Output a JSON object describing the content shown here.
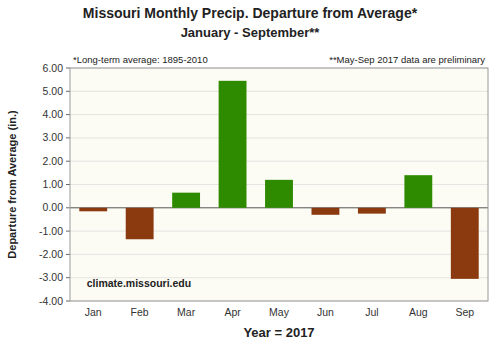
{
  "chart_data": {
    "type": "bar",
    "title": "Missouri Monthly Precip. Departure from Average*",
    "subtitle": "January - September**",
    "x_label": "Year = 2017",
    "y_label": "Departure from Average (in.)",
    "annotations": [
      "*Long-term average: 1895-2010",
      "**May-Sep 2017 data are preliminary",
      "climate.missouri.edu"
    ],
    "categories": [
      "Jan",
      "Feb",
      "Mar",
      "Apr",
      "May",
      "Jun",
      "Jul",
      "Aug",
      "Sep"
    ],
    "values": [
      -0.15,
      -1.35,
      0.65,
      5.45,
      1.2,
      -0.3,
      -0.25,
      1.4,
      -3.05
    ],
    "colors": [
      "#8B3A0F",
      "#8B3A0F",
      "#2E8B00",
      "#2E8B00",
      "#2E8B00",
      "#8B3A0F",
      "#8B3A0F",
      "#2E8B00",
      "#8B3A0F"
    ],
    "ylim": [
      -4.0,
      6.0
    ],
    "yticks": [
      {
        "value": -4.0,
        "label": "-4.00"
      },
      {
        "value": -3.0,
        "label": "-3.00"
      },
      {
        "value": -2.0,
        "label": "-2.00"
      },
      {
        "value": -1.0,
        "label": "-1.00"
      },
      {
        "value": 0.0,
        "label": "0.00"
      },
      {
        "value": 1.0,
        "label": "1.00"
      },
      {
        "value": 2.0,
        "label": "2.00"
      },
      {
        "value": 3.0,
        "label": "3.00"
      },
      {
        "value": 4.0,
        "label": "4.00"
      },
      {
        "value": 5.0,
        "label": "5.00"
      },
      {
        "value": 6.0,
        "label": "6.00"
      }
    ],
    "grid": true
  }
}
